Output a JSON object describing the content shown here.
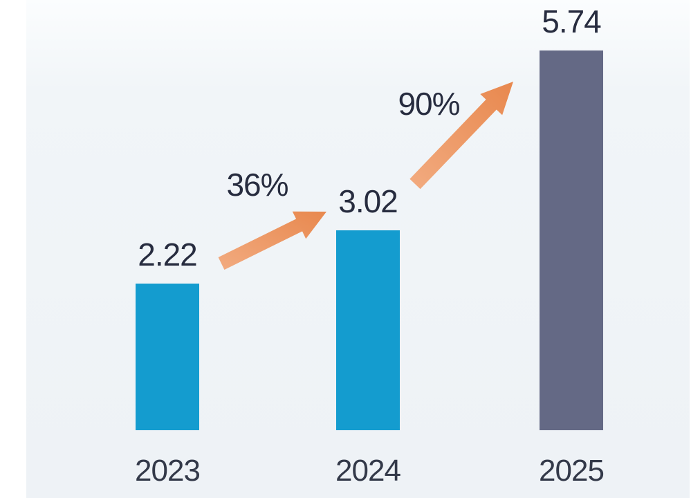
{
  "chart_data": {
    "type": "bar",
    "title": "",
    "categories": [
      "2023",
      "2024",
      "2025"
    ],
    "values": [
      2.22,
      3.02,
      5.74
    ],
    "values_display": [
      "2.22",
      "3.02",
      "5.74"
    ],
    "growth_labels": [
      "36%",
      "90%"
    ],
    "bar_colors": [
      "#149CCF",
      "#149CCF",
      "#646985"
    ],
    "axes_visible": false,
    "grid": false,
    "legend": false,
    "xlabel": "",
    "ylabel": ""
  },
  "colors": {
    "background_tint": "#F0F4F7",
    "margin_white": "#FFFFFF",
    "bar_teal": "#149CCF",
    "bar_slate": "#646985",
    "arrow_orange_light": "#F2AB80",
    "arrow_orange_dark": "#E8884E",
    "value_text": "#272C3F",
    "year_text": "#333949"
  }
}
